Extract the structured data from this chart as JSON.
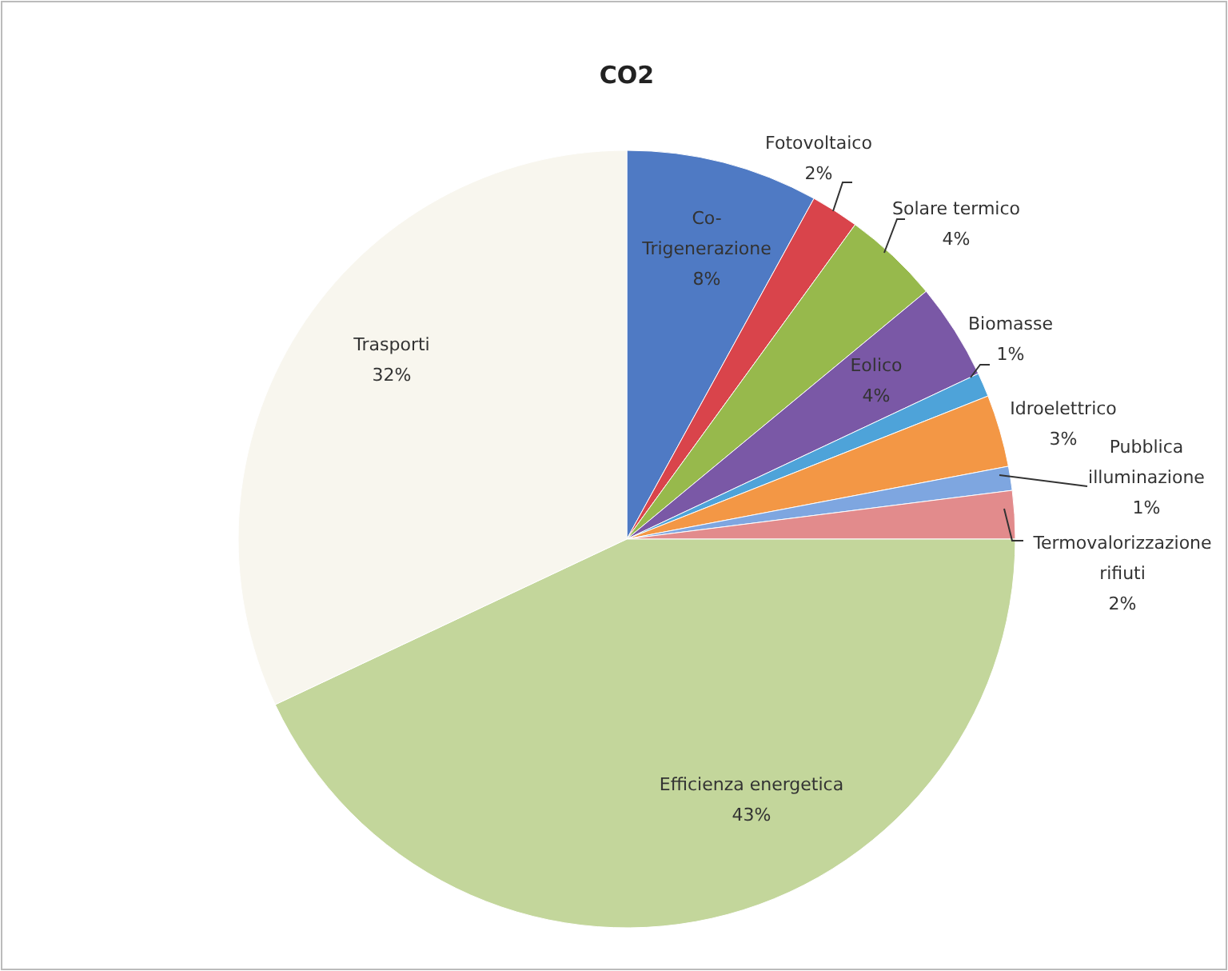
{
  "chart_data": {
    "type": "pie",
    "title": "CO2",
    "categories": [
      "Co-\nTrigenerazione",
      "Fotovoltaico",
      "Solare termico",
      "Eolico",
      "Biomasse",
      "Idroelettrico",
      "Pubblica\nilluminazione",
      "Termovalorizzazione\nrifiuti",
      "Efficienza energetica",
      "Trasporti"
    ],
    "values": [
      8,
      2,
      4,
      4,
      1,
      3,
      1,
      2,
      43,
      32
    ],
    "value_labels": [
      "8%",
      "2%",
      "4%",
      "4%",
      "1%",
      "3%",
      "1%",
      "2%",
      "43%",
      "32%"
    ],
    "colors": [
      "#4f7ac4",
      "#d9444b",
      "#97b94c",
      "#7a58a6",
      "#4ea3d9",
      "#f39745",
      "#7ea6e0",
      "#e28b8c",
      "#c3d69b",
      "#f8f6ee"
    ]
  }
}
